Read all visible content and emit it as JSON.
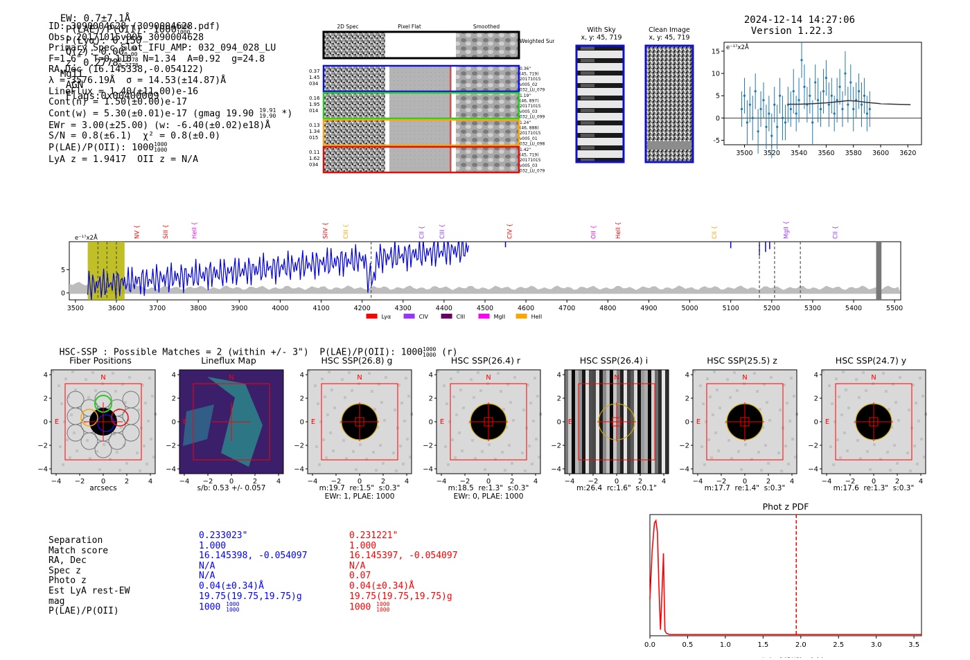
{
  "header": {
    "ew": "EW: 0.7±7.1Å",
    "plae": "P(LAE)/P(OII): 1000",
    "plae_hi": "1000",
    "plae_lo": "1000",
    "plya": "P(Lyα): 0.150",
    "qz": "Q(z): 0.00",
    "qz_hi": "0.00",
    "qz_lo": "0.00",
    "z": "z: 0.2778",
    "z_hi": "0.2778",
    "z_lo": "0.2778",
    "mgii": "MgII",
    "agn": "AGN",
    "flags": "Flags:0x00400009",
    "timestamp": "2024-12-14 14:27:06",
    "version": "Version 1.22.3"
  },
  "info": {
    "lines": [
      "ID: 3090004628 (3090004628.pdf)",
      "Obs: 20171015v005_3090004628",
      "Primary Spec_Slot_IFU_AMP: 032_094_028_LU",
      "F=1.6\"  T=0.118  N=1.34  A=0.92  g=24.8",
      "RA,Dec (16.145338,-0.054122)",
      "λ = 3576.19Å  σ = 14.53(±14.87)Å",
      "LineFlux = 1.40(±11.00)e-16",
      "Cont(n) = 1.50(±0.00)e-17",
      "Cont(w) = 5.30(±0.01)e-17 (gmag 19.90",
      "EWr = 3.00(±25.00) (w: -6.40(±0.02)e18)Å",
      "S/N = 0.8(±6.1)  χ² = 0.8(±0.0)",
      "P(LAE)/P(OII): 1000",
      "LyA z = 1.9417  OII z = N/A"
    ],
    "gmag_hi": "19.91",
    "gmag_lo": "19.90",
    "gmag_suffix": "*)",
    "plae_hi": "1000",
    "plae_lo": "1000"
  },
  "spec2d": {
    "headers": [
      "2D Spec",
      "Pixel Flat",
      "Smoothed"
    ],
    "weighted_label": "Weighted Sum",
    "rows": [
      {
        "left": [
          "0.37",
          "1.45",
          "034"
        ],
        "right": [
          "0.36\"",
          "(45, 719)",
          "20171015",
          "v005_02",
          "032_LU_079"
        ],
        "color": "#1010dd"
      },
      {
        "left": [
          "0.16",
          "1.95",
          "014"
        ],
        "right": [
          "1.19\"",
          "(46, 897)",
          "20171015",
          "v005_03",
          "032_LU_099"
        ],
        "color": "#22cc22"
      },
      {
        "left": [
          "0.13",
          "1.34",
          "015"
        ],
        "right": [
          "1.24\"",
          "(46, 888)",
          "20171015",
          "v005_01",
          "032_LU_098"
        ],
        "color": "#ffa500"
      },
      {
        "left": [
          "0.11",
          "1.62",
          "034"
        ],
        "right": [
          "1.42\"",
          "(45, 719)",
          "20171015",
          "v005_03",
          "032_LU_079"
        ],
        "color": "#dd1111"
      }
    ]
  },
  "sky": {
    "with_sky_title": "With Sky",
    "with_sky_sub": "x, y: 45, 719",
    "clean_title": "Clean Image",
    "clean_sub": "x, y: 45, 719"
  },
  "chart_data": [
    {
      "type": "line",
      "title": "",
      "ylabel": "e⁻¹⁷x2Å",
      "xlim": [
        3485,
        3630
      ],
      "ylim": [
        -6,
        17
      ],
      "xticks": [
        "3500",
        "3520",
        "3540",
        "3560",
        "3580",
        "3600",
        "3620"
      ],
      "yticks": [
        "-5",
        "0",
        "5",
        "10",
        "15"
      ],
      "series": [
        {
          "name": "data",
          "x": [
            3532,
            3534,
            3536,
            3538,
            3540,
            3542,
            3544,
            3546,
            3548,
            3550,
            3552,
            3554,
            3556,
            3558,
            3560,
            3562,
            3564,
            3566,
            3568,
            3570,
            3572,
            3574,
            3576,
            3578,
            3580,
            3582,
            3584,
            3586,
            3588,
            3590,
            3592
          ],
          "y": [
            3,
            2,
            6,
            1,
            4,
            13,
            7,
            3,
            5,
            -1,
            8,
            4,
            2,
            6,
            9,
            3,
            5,
            1,
            4,
            7,
            2,
            10,
            3,
            8,
            2,
            4,
            6,
            3,
            5,
            1,
            2
          ],
          "err": [
            4,
            4,
            5,
            4,
            5,
            4,
            5,
            4,
            4,
            5,
            4,
            5,
            4,
            5,
            4,
            5,
            4,
            4,
            5,
            4,
            4,
            5,
            4,
            4,
            5,
            4,
            4,
            5,
            4,
            4,
            4
          ]
        },
        {
          "name": "data_left",
          "x": [
            3498,
            3500,
            3502,
            3504,
            3506,
            3508,
            3510,
            3512,
            3514,
            3516,
            3518,
            3520,
            3522,
            3524,
            3526,
            3528,
            3530
          ],
          "y": [
            2,
            5,
            -1,
            3,
            0,
            6,
            -3,
            2,
            4,
            -2,
            1,
            -4,
            3,
            -2,
            5,
            0,
            -1
          ],
          "err": [
            4,
            4,
            5,
            4,
            5,
            4,
            5,
            4,
            4,
            5,
            4,
            5,
            4,
            5,
            4,
            5,
            4
          ]
        },
        {
          "name": "model",
          "x": [
            3532,
            3540,
            3550,
            3560,
            3570,
            3576,
            3582,
            3590,
            3600,
            3610,
            3622
          ],
          "y": [
            3.1,
            3.1,
            3.2,
            3.4,
            3.7,
            3.9,
            3.8,
            3.5,
            3.2,
            3.1,
            3.0
          ]
        }
      ]
    },
    {
      "type": "line",
      "title": "",
      "ylabel": "e⁻¹⁷x2Å",
      "xlim": [
        3485,
        5515
      ],
      "ylim": [
        -1.5,
        11
      ],
      "xticks": [
        "3500",
        "3600",
        "3700",
        "3800",
        "3900",
        "4000",
        "4100",
        "4200",
        "4300",
        "4400",
        "4500",
        "4600",
        "4700",
        "4800",
        "4900",
        "5000",
        "5100",
        "5200",
        "5300",
        "5400",
        "5500"
      ],
      "yticks": [
        "0",
        "5"
      ],
      "lines": [
        {
          "label": "NV",
          "x": 3650,
          "color": "#ff0000"
        },
        {
          "label": "SiII",
          "x": 3720,
          "color": "#ff0000"
        },
        {
          "label": "HeII",
          "x": 3790,
          "color": "#ff00ff"
        },
        {
          "label": "SiIV",
          "x": 4110,
          "color": "#ff0000"
        },
        {
          "label": "CIII",
          "x": 4160,
          "color": "#ffa500"
        },
        {
          "label": "CII",
          "x": 4345,
          "color": "#9933ff"
        },
        {
          "label": "CIII",
          "x": 4395,
          "color": "#9933ff"
        },
        {
          "label": "CIV",
          "x": 4560,
          "color": "#ff0000"
        },
        {
          "label": "OII",
          "x": 4765,
          "color": "#ff00ff"
        },
        {
          "label": "HeII",
          "x": 4825,
          "color": "#ff0000"
        },
        {
          "label": "CII",
          "x": 5060,
          "color": "#ffa500"
        },
        {
          "label": "MgII",
          "x": 5235,
          "color": "#9933ff"
        },
        {
          "label": "CII",
          "x": 5355,
          "color": "#9933ff"
        }
      ],
      "legend": [
        {
          "label": "Lyα",
          "color": "#ff0000"
        },
        {
          "label": "CIV",
          "color": "#9933ff"
        },
        {
          "label": "CIII",
          "color": "#660066"
        },
        {
          "label": "MgII",
          "color": "#ff00ff"
        },
        {
          "label": "HeII",
          "color": "#ffa500"
        }
      ]
    },
    {
      "type": "line",
      "title": "Phot z PDF",
      "xlim": [
        0,
        3.6
      ],
      "ylim": [
        0,
        1
      ],
      "xticks": [
        "0.0",
        "0.5",
        "1.0",
        "1.5",
        "2.0",
        "2.5",
        "3.0",
        "3.5"
      ],
      "series": [
        {
          "name": "pdf",
          "x": [
            0,
            0.03,
            0.06,
            0.08,
            0.1,
            0.12,
            0.14,
            0.16,
            0.18,
            0.19,
            0.2,
            0.22,
            0.26,
            0.4,
            1,
            2,
            3,
            3.6
          ],
          "y": [
            0.3,
            0.7,
            0.93,
            0.95,
            0.85,
            0.4,
            0.05,
            0.35,
            0.68,
            0.3,
            0.04,
            0.02,
            0.01,
            0.01,
            0.01,
            0.01,
            0.01,
            0.01
          ]
        }
      ],
      "vline": {
        "x": 1.94,
        "label": "LyA z (VIRUS) = 1.94"
      }
    }
  ],
  "hsc_line": {
    "text": "HSC-SSP : Possible Matches = 2 (within +/- 3\")  P(LAE)/P(OII): 1000",
    "hi": "1000",
    "lo": "1000",
    "suffix": "(r)"
  },
  "cutouts": [
    {
      "title": "Fiber Positions",
      "cap1": "arcsecs",
      "cap2": ""
    },
    {
      "title": "Lineflux Map",
      "cap1": "s/b: 0.53 +/- 0.057",
      "cap2": ""
    },
    {
      "title": "HSC SSP(26.8) g",
      "cap1": "m:19.7  re:1.5\"  s:0.3\"",
      "cap2": "EWr: 1, PLAE: 1000"
    },
    {
      "title": "HSC SSP(26.4) r",
      "cap1": "m:18.5  re:1.3\"  s:0.3\"",
      "cap2": "EWr: 0, PLAE: 1000"
    },
    {
      "title": "HSC SSP(26.4) i",
      "cap1": "m:26.4  rc:1.6\"  s:0.1\"",
      "cap2": ""
    },
    {
      "title": "HSC SSP(25.5) z",
      "cap1": "m:17.7  re:1.4\"  s:0.3\"",
      "cap2": ""
    },
    {
      "title": "HSC SSP(24.7) y",
      "cap1": "m:17.6  re:1.3\"  s:0.3\"",
      "cap2": ""
    }
  ],
  "cut_ticks": {
    "y": [
      "4",
      "2",
      "0",
      "−2",
      "−4"
    ],
    "x": [
      "−4",
      "−2",
      "0",
      "2",
      "4"
    ],
    "n": "N",
    "e": "E"
  },
  "matches": {
    "labels": [
      "Separation",
      "Match score",
      "RA, Dec",
      "Spec z",
      "Photo z",
      "Est LyA rest-EW",
      "mag",
      "P(LAE)/P(OII)"
    ],
    "blue": [
      "0.233023\"",
      "1.000",
      "16.145398, -0.054097",
      "N/A",
      "N/A",
      "0.04(±0.34)Å",
      "19.75(19.75,19.75)g",
      "1000"
    ],
    "red": [
      "0.231221\"",
      "1.000",
      "16.145397, -0.054097",
      "N/A",
      "0.07",
      "0.04(±0.34)Å",
      "19.75(19.75,19.75)g",
      "1000"
    ],
    "frac_hi": "1000",
    "frac_lo": "1000",
    "blue_color": "#0000ff",
    "red_color": "#ff0000"
  }
}
